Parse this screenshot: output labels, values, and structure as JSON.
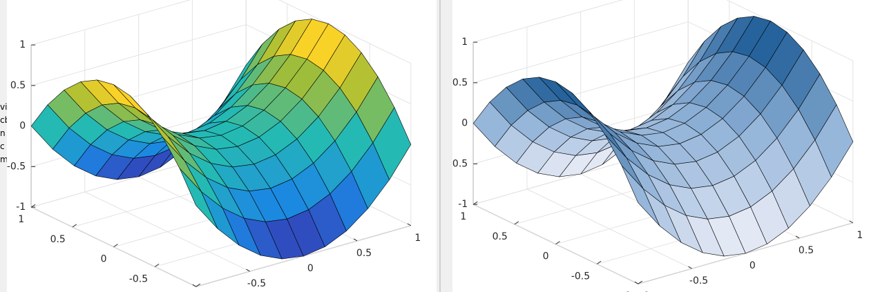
{
  "sidebar": [
    "vi",
    "cb",
    "n",
    "c",
    "m"
  ],
  "chart_data": [
    {
      "type": "surface",
      "colormap": "parula",
      "grid": true,
      "view": {
        "azimuth": -37.5,
        "elevation": 30
      },
      "x": [
        -1,
        -0.8,
        -0.6,
        -0.4,
        -0.2,
        0,
        0.2,
        0.4,
        0.6,
        0.8,
        1
      ],
      "y": [
        -1,
        -0.8,
        -0.6,
        -0.4,
        -0.2,
        0,
        0.2,
        0.4,
        0.6,
        0.8,
        1
      ],
      "z": [
        [
          0,
          -0.36,
          -0.64,
          -0.84,
          -0.96,
          -1,
          -0.96,
          -0.84,
          -0.64,
          -0.36,
          0
        ],
        [
          0.36,
          0,
          -0.28,
          -0.48,
          -0.6,
          -0.64,
          -0.6,
          -0.48,
          -0.28,
          0,
          0.36
        ],
        [
          0.64,
          0.28,
          0,
          -0.2,
          -0.32,
          -0.36,
          -0.32,
          -0.2,
          0,
          0.28,
          0.64
        ],
        [
          0.84,
          0.48,
          0.2,
          0,
          -0.12,
          -0.16,
          -0.12,
          0,
          0.2,
          0.48,
          0.84
        ],
        [
          0.96,
          0.6,
          0.32,
          0.12,
          0,
          -0.04,
          0,
          0.12,
          0.32,
          0.6,
          0.96
        ],
        [
          1,
          0.64,
          0.36,
          0.16,
          0.04,
          0,
          0.04,
          0.16,
          0.36,
          0.64,
          1
        ],
        [
          0.96,
          0.6,
          0.32,
          0.12,
          0,
          -0.04,
          0,
          0.12,
          0.32,
          0.6,
          0.96
        ],
        [
          0.84,
          0.48,
          0.2,
          0,
          -0.12,
          -0.16,
          -0.12,
          0,
          0.2,
          0.48,
          0.84
        ],
        [
          0.64,
          0.28,
          0,
          -0.2,
          -0.32,
          -0.36,
          -0.32,
          -0.2,
          0,
          0.28,
          0.64
        ],
        [
          0.36,
          0,
          -0.28,
          -0.48,
          -0.6,
          -0.64,
          -0.6,
          -0.48,
          -0.28,
          0,
          0.36
        ],
        [
          0,
          -0.36,
          -0.64,
          -0.84,
          -0.96,
          -1,
          -0.96,
          -0.84,
          -0.64,
          -0.36,
          0
        ]
      ],
      "xlim": [
        -1,
        1
      ],
      "ylim": [
        -1,
        1
      ],
      "zlim": [
        -1,
        1
      ],
      "xticks": [
        -1,
        -0.5,
        0,
        0.5,
        1
      ],
      "yticks": [
        -1,
        -0.5,
        0,
        0.5,
        1
      ],
      "zticks": [
        -1,
        -0.5,
        0,
        0.5,
        1
      ]
    },
    {
      "type": "surface",
      "colormap": "blues",
      "grid": true,
      "view": {
        "azimuth": -37.5,
        "elevation": 30
      },
      "x": [
        -1,
        -0.8,
        -0.6,
        -0.4,
        -0.2,
        0,
        0.2,
        0.4,
        0.6,
        0.8,
        1
      ],
      "y": [
        -1,
        -0.8,
        -0.6,
        -0.4,
        -0.2,
        0,
        0.2,
        0.4,
        0.6,
        0.8,
        1
      ],
      "z": [
        [
          0,
          -0.36,
          -0.64,
          -0.84,
          -0.96,
          -1,
          -0.96,
          -0.84,
          -0.64,
          -0.36,
          0
        ],
        [
          0.36,
          0,
          -0.28,
          -0.48,
          -0.6,
          -0.64,
          -0.6,
          -0.48,
          -0.28,
          0,
          0.36
        ],
        [
          0.64,
          0.28,
          0,
          -0.2,
          -0.32,
          -0.36,
          -0.32,
          -0.2,
          0,
          0.28,
          0.64
        ],
        [
          0.84,
          0.48,
          0.2,
          0,
          -0.12,
          -0.16,
          -0.12,
          0,
          0.2,
          0.48,
          0.84
        ],
        [
          0.96,
          0.6,
          0.32,
          0.12,
          0,
          -0.04,
          0,
          0.12,
          0.32,
          0.6,
          0.96
        ],
        [
          1,
          0.64,
          0.36,
          0.16,
          0.04,
          0,
          0.04,
          0.16,
          0.36,
          0.64,
          1
        ],
        [
          0.96,
          0.6,
          0.32,
          0.12,
          0,
          -0.04,
          0,
          0.12,
          0.32,
          0.6,
          0.96
        ],
        [
          0.84,
          0.48,
          0.2,
          0,
          -0.12,
          -0.16,
          -0.12,
          0,
          0.2,
          0.48,
          0.84
        ],
        [
          0.64,
          0.28,
          0,
          -0.2,
          -0.32,
          -0.36,
          -0.32,
          -0.2,
          0,
          0.28,
          0.64
        ],
        [
          0.36,
          0,
          -0.28,
          -0.48,
          -0.6,
          -0.64,
          -0.6,
          -0.48,
          -0.28,
          0,
          0.36
        ],
        [
          0,
          -0.36,
          -0.64,
          -0.84,
          -0.96,
          -1,
          -0.96,
          -0.84,
          -0.64,
          -0.36,
          0
        ]
      ],
      "xlim": [
        -1,
        1
      ],
      "ylim": [
        -1,
        1
      ],
      "zlim": [
        -1,
        1
      ],
      "xticks": [
        -1,
        -0.5,
        0,
        0.5,
        1
      ],
      "yticks": [
        -1,
        -0.5,
        0,
        0.5,
        1
      ],
      "zticks": [
        -1,
        -0.5,
        0,
        0.5,
        1
      ]
    }
  ]
}
